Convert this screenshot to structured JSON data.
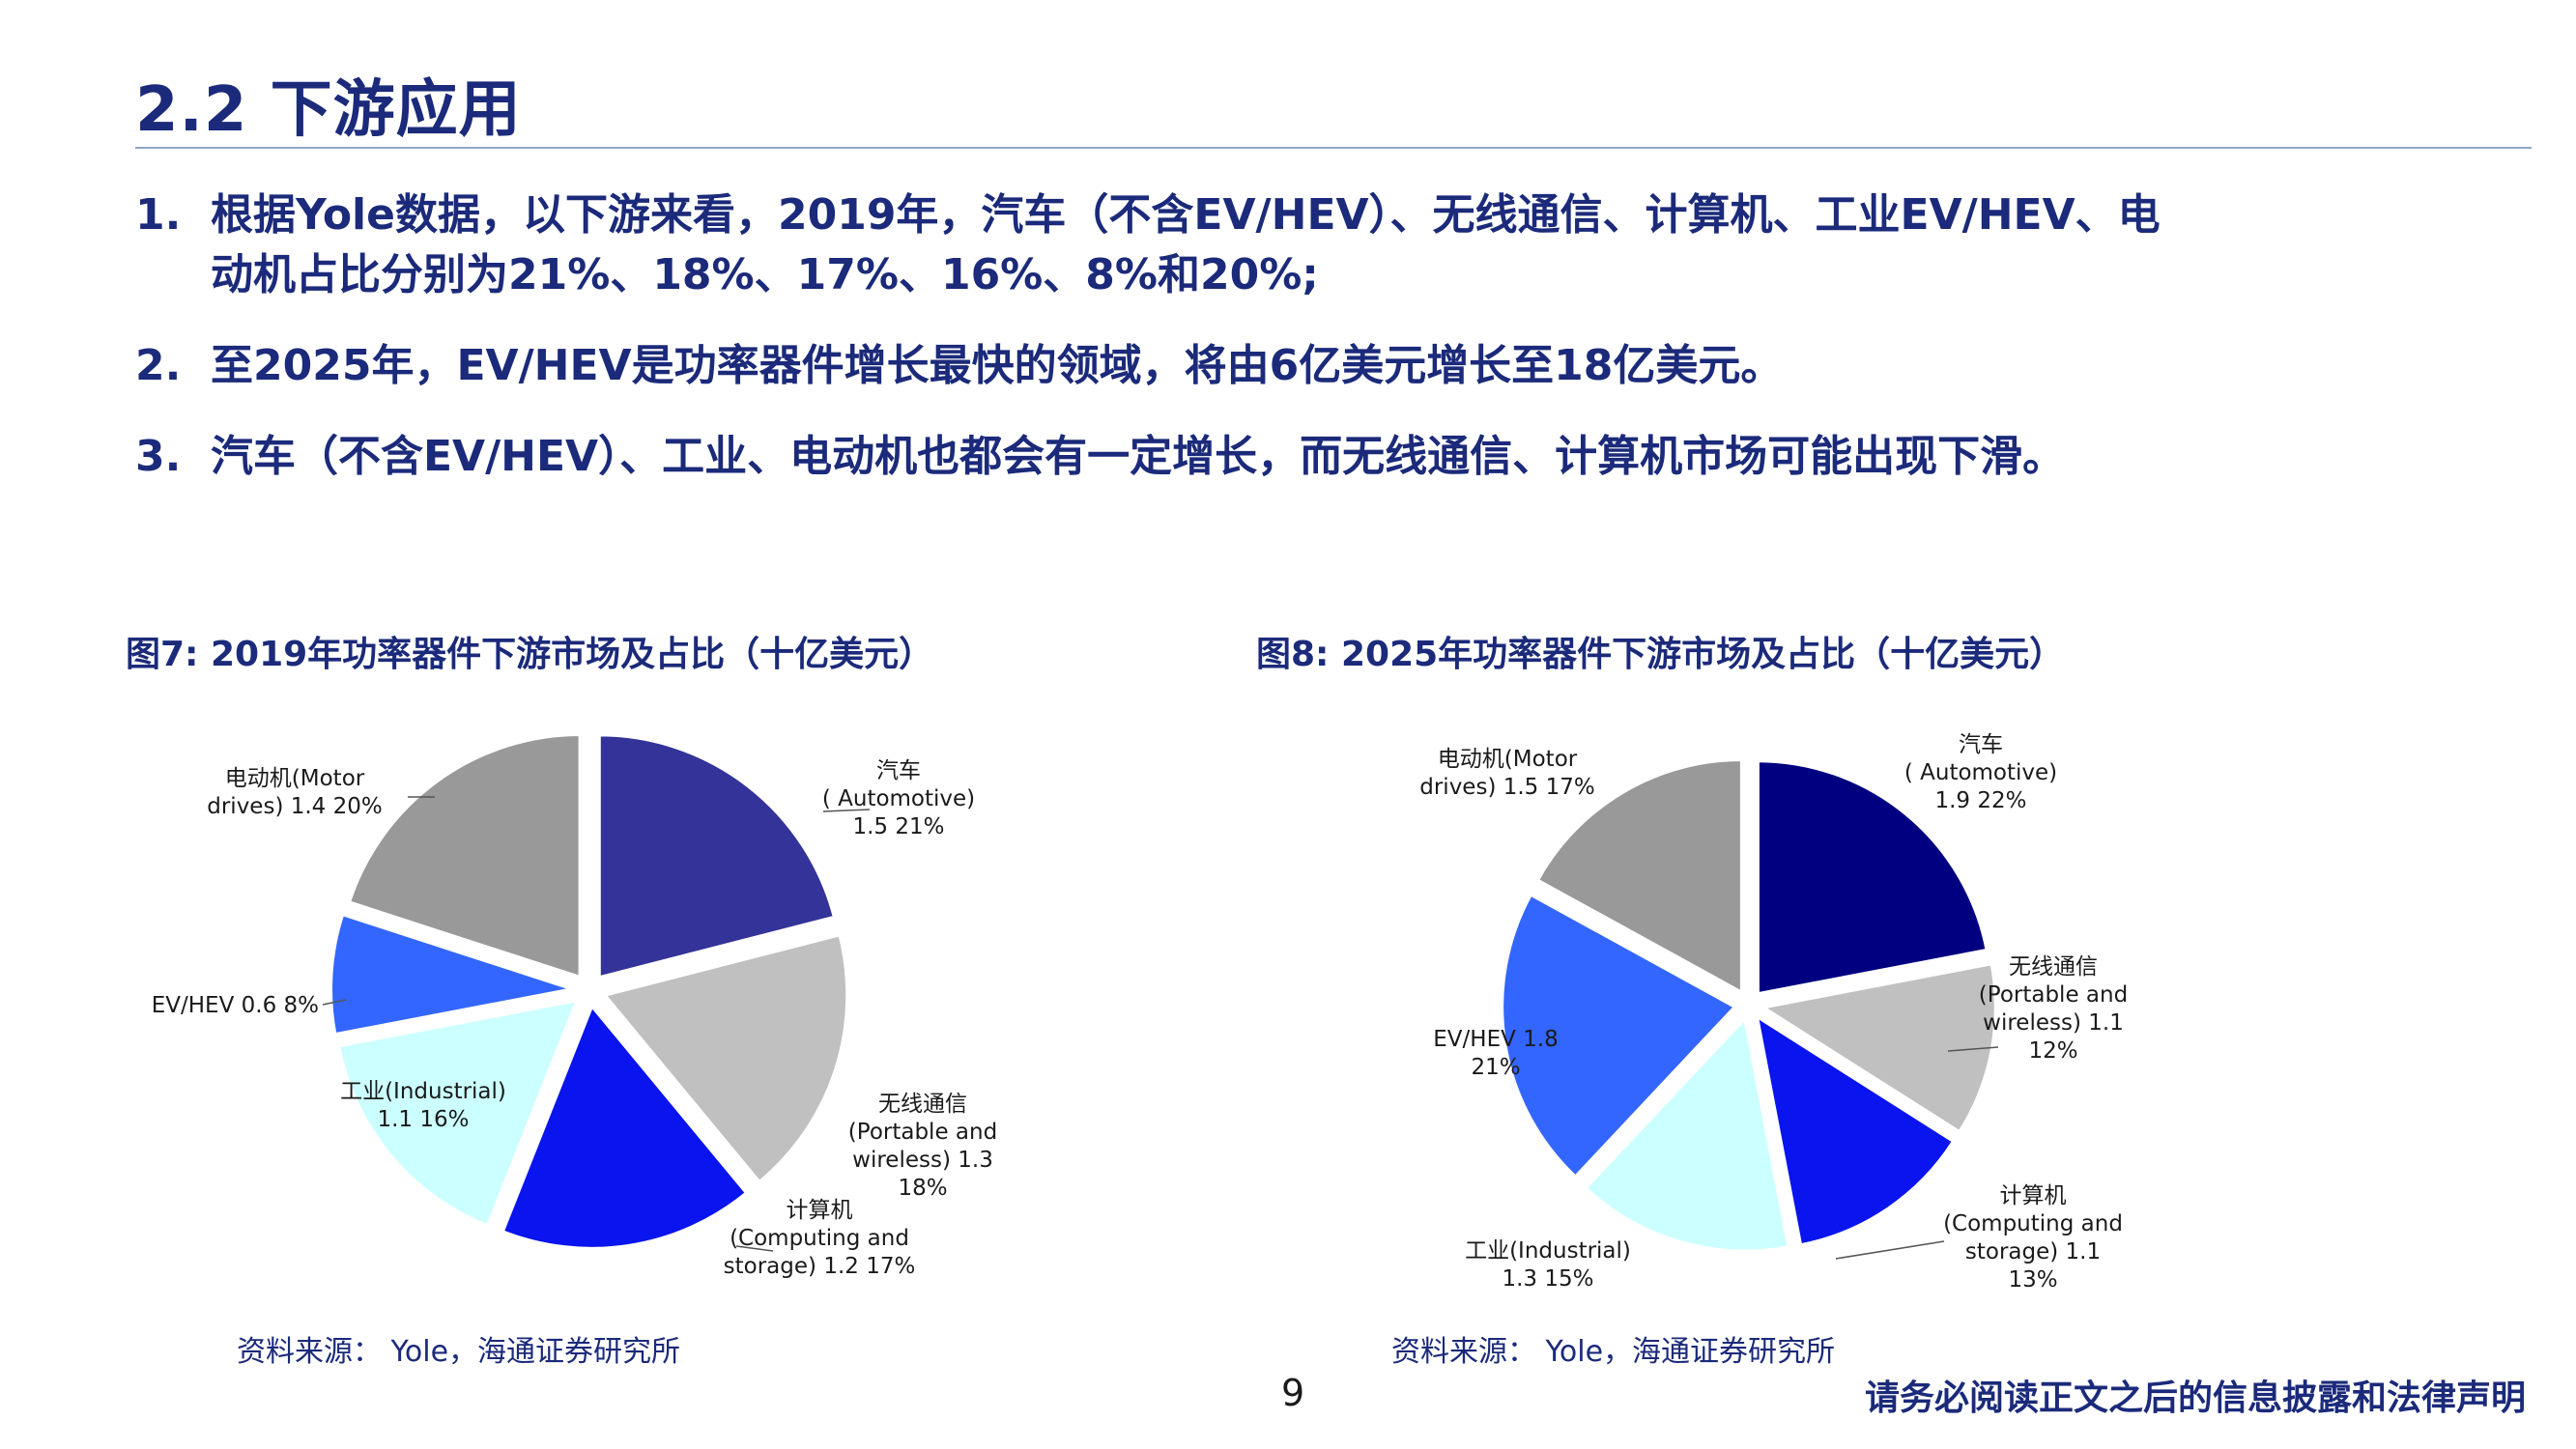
{
  "title": "2.2 下游应用",
  "bullets": [
    {
      "num": "1.",
      "lines": [
        "根据Yole数据，以下游来看，2019年，汽车（不含EV/HEV）、无线通信、计算机、工业EV/HEV、电",
        "动机占比分别为21%、18%、17%、16%、8%和20%;"
      ]
    },
    {
      "num": "2.",
      "lines": [
        "至2025年，EV/HEV是功率器件增长最快的领域，将由6亿美元增长至18亿美元。"
      ]
    },
    {
      "num": "3.",
      "lines": [
        "汽车（不含EV/HEV）、工业、电动机也都会有一定增长，而无线通信、计算机市场可能出现下滑。"
      ]
    }
  ],
  "figures": [
    {
      "title": "图7:  2019年功率器件下游市场及占比（十亿美元）",
      "source": "资料来源：  Yole，海通证券研究所"
    },
    {
      "title": "图8:  2025年功率器件下游市场及占比（十亿美元）",
      "source": "资料来源：  Yole，海通证券研究所"
    }
  ],
  "page_number": "9",
  "disclaimer": "请务必阅读正文之后的信息披露和法律声明",
  "chart_data": [
    {
      "type": "pie",
      "title": "图7:  2019年功率器件下游市场及占比（十亿美元）",
      "slices": [
        {
          "name": "汽车 ( Automotive)",
          "value": 1.5,
          "percent": 21,
          "color": "#333399",
          "label_lines": [
            "汽车",
            "( Automotive)",
            "1.5  21%"
          ]
        },
        {
          "name": "无线通信 (Portable and wireless)",
          "value": 1.3,
          "percent": 18,
          "color": "#c0c0c0",
          "label_lines": [
            "无线通信",
            "(Portable and",
            "wireless) 1.3",
            "18%"
          ]
        },
        {
          "name": "计算机 (Computing and storage)",
          "value": 1.2,
          "percent": 17,
          "color": "#0a14ee",
          "label_lines": [
            "计算机",
            "(Computing and",
            "storage) 1.2  17%"
          ]
        },
        {
          "name": "工业(Industrial)",
          "value": 1.1,
          "percent": 16,
          "color": "#ccffff",
          "label_lines": [
            "工业(Industrial)",
            "1.1  16%"
          ]
        },
        {
          "name": "EV/HEV",
          "value": 0.6,
          "percent": 8,
          "color": "#3366ff",
          "label_lines": [
            "EV/HEV 0.6  8%"
          ]
        },
        {
          "name": "电动机(Motor drives)",
          "value": 1.4,
          "percent": 20,
          "color": "#999999",
          "label_lines": [
            "电动机(Motor",
            "drives) 1.4  20%"
          ]
        }
      ]
    },
    {
      "type": "pie",
      "title": "图8:  2025年功率器件下游市场及占比（十亿美元）",
      "slices": [
        {
          "name": "汽车 ( Automotive)",
          "value": 1.9,
          "percent": 22,
          "color": "#000080",
          "label_lines": [
            "汽车",
            "( Automotive)",
            "1.9  22%"
          ]
        },
        {
          "name": "无线通信 (Portable and wireless)",
          "value": 1.1,
          "percent": 12,
          "color": "#c0c0c0",
          "label_lines": [
            "无线通信",
            "(Portable and",
            "wireless) 1.1",
            "12%"
          ]
        },
        {
          "name": "计算机 (Computing and storage)",
          "value": 1.1,
          "percent": 13,
          "color": "#0a14ee",
          "label_lines": [
            "计算机",
            "(Computing and",
            "storage) 1.1",
            "13%"
          ]
        },
        {
          "name": "工业(Industrial)",
          "value": 1.3,
          "percent": 15,
          "color": "#ccffff",
          "label_lines": [
            "工业(Industrial)",
            "1.3  15%"
          ]
        },
        {
          "name": "EV/HEV",
          "value": 1.8,
          "percent": 21,
          "color": "#3366ff",
          "label_lines": [
            "EV/HEV 1.8",
            "21%"
          ]
        },
        {
          "name": "电动机(Motor drives)",
          "value": 1.5,
          "percent": 17,
          "color": "#999999",
          "label_lines": [
            "电动机(Motor",
            "drives) 1.5  17%"
          ]
        }
      ]
    }
  ]
}
